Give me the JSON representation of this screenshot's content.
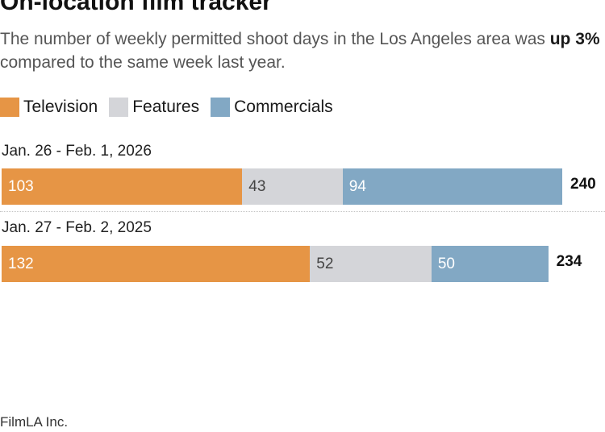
{
  "title": "On-location film tracker",
  "subtitle": {
    "before": "The number of weekly permitted shoot days in the Los Angeles area was ",
    "highlight": "up 3%",
    "after": " compared to the same week last year."
  },
  "legend": [
    {
      "label": "Television",
      "color": "#E69545"
    },
    {
      "label": "Features",
      "color": "#D4D5D9"
    },
    {
      "label": "Commercials",
      "color": "#82A8C4"
    }
  ],
  "source": "FilmLA Inc.",
  "chart_data": {
    "type": "bar",
    "orientation": "horizontal",
    "stacked": true,
    "categories": [
      "Jan. 26 - Feb. 1, 2026",
      "Jan. 27 - Feb. 2, 2025"
    ],
    "series": [
      {
        "name": "Television",
        "values": [
          103,
          132
        ],
        "color": "#E69545"
      },
      {
        "name": "Features",
        "values": [
          43,
          52
        ],
        "color": "#D4D5D9"
      },
      {
        "name": "Commercials",
        "values": [
          94,
          50
        ],
        "color": "#82A8C4"
      }
    ],
    "totals": [
      "240",
      "234"
    ],
    "xlim": [
      0,
      240
    ],
    "grid": false,
    "legend_position": "top-left"
  }
}
